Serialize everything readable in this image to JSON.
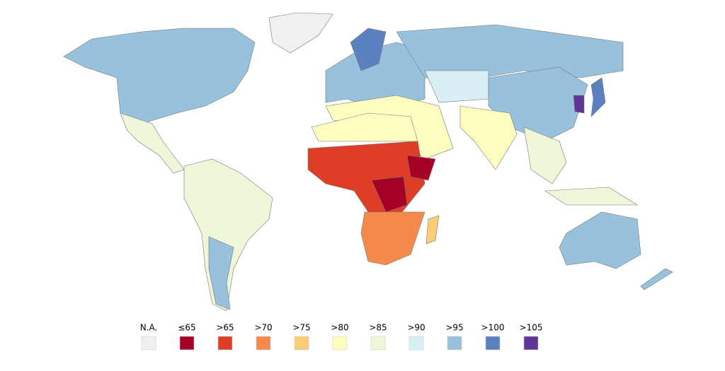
{
  "legend": {
    "items": [
      {
        "label": "N.A.",
        "color": "#f0f0f0"
      },
      {
        "label": "≤65",
        "color": "#a50026"
      },
      {
        "label": ">65",
        "color": "#df3e26"
      },
      {
        "label": ">70",
        "color": "#f58a4b"
      },
      {
        "label": ">75",
        "color": "#fdcd76"
      },
      {
        "label": ">80",
        "color": "#fefdc0"
      },
      {
        "label": ">85",
        "color": "#eef7d8"
      },
      {
        "label": ">90",
        "color": "#d8eff5"
      },
      {
        "label": ">95",
        "color": "#97c1dd"
      },
      {
        "label": ">100",
        "color": "#5b80c0"
      },
      {
        "label": ">105",
        "color": "#5e3696"
      }
    ]
  }
}
